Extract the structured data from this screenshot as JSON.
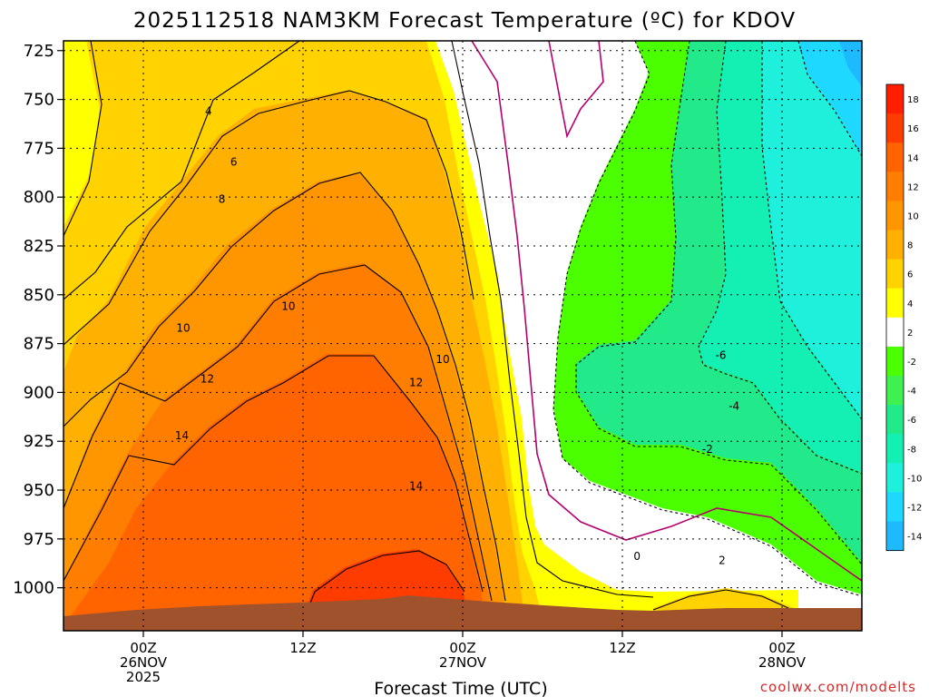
{
  "chart_data": {
    "type": "heatmap",
    "title": "2025112518 NAM3KM Forecast Temperature (ºC) for KDOV",
    "xlabel": "Forecast Time (UTC)",
    "ylabel": "",
    "credit": "coolwx.com/modelts",
    "y_ticks": [
      725,
      750,
      775,
      800,
      825,
      850,
      875,
      900,
      925,
      950,
      975,
      1000
    ],
    "ylim": [
      1022,
      720
    ],
    "x_ticks": [
      {
        "t": 6,
        "lines": [
          "00Z",
          "26NOV",
          "2025"
        ]
      },
      {
        "t": 18,
        "lines": [
          "12Z"
        ]
      },
      {
        "t": 30,
        "lines": [
          "00Z",
          "27NOV"
        ]
      },
      {
        "t": 42,
        "lines": [
          "12Z"
        ]
      },
      {
        "t": 54,
        "lines": [
          "00Z",
          "28NOV"
        ]
      }
    ],
    "xlim": [
      0,
      60
    ],
    "colorbar": {
      "labels": [
        18,
        16,
        14,
        12,
        10,
        8,
        6,
        4,
        2,
        -2,
        -4,
        -6,
        -8,
        -10,
        -12,
        -14
      ],
      "colors": [
        "#ff1e00",
        "#ff3c00",
        "#ff6400",
        "#ff7d00",
        "#ff9600",
        "#ffb000",
        "#ffd200",
        "#ffff00",
        "#ffffff",
        "#4cff00",
        "#3ef050",
        "#22ea8a",
        "#14f0b4",
        "#1ef0dc",
        "#1ed8ff",
        "#1ebaff"
      ]
    },
    "series": [
      {
        "name": "temperature_c",
        "values": [
          {
            "t": 0,
            "p": 1000,
            "v": 16
          },
          {
            "t": 12,
            "p": 850,
            "v": 10
          },
          {
            "t": 24,
            "p": 1000,
            "v": 17
          },
          {
            "t": 33,
            "p": 950,
            "v": 4
          },
          {
            "t": 40,
            "p": 1000,
            "v": 2
          },
          {
            "t": 45,
            "p": 875,
            "v": -6
          },
          {
            "t": 58,
            "p": 725,
            "v": -14
          },
          {
            "t": 52,
            "p": 1000,
            "v": 4
          }
        ]
      }
    ],
    "contour_labels": [
      {
        "text": "4",
        "t": 10.9,
        "p": 756
      },
      {
        "text": "6",
        "t": 12.8,
        "p": 782
      },
      {
        "text": "8",
        "t": 11.9,
        "p": 801
      },
      {
        "text": "10",
        "t": 16.9,
        "p": 856
      },
      {
        "text": "10",
        "t": 9.0,
        "p": 867
      },
      {
        "text": "12",
        "t": 10.8,
        "p": 893
      },
      {
        "text": "14",
        "t": 8.9,
        "p": 922
      },
      {
        "text": "12",
        "t": 26.5,
        "p": 895
      },
      {
        "text": "10",
        "t": 28.5,
        "p": 883
      },
      {
        "text": "14",
        "t": 26.5,
        "p": 948
      },
      {
        "text": "0",
        "t": 43.1,
        "p": 984
      },
      {
        "text": "2",
        "t": 49.5,
        "p": 986
      },
      {
        "text": "-2",
        "t": 48.4,
        "p": 929
      },
      {
        "text": "-4",
        "t": 50.4,
        "p": 907
      },
      {
        "text": "-6",
        "t": 49.4,
        "p": 881
      }
    ]
  }
}
